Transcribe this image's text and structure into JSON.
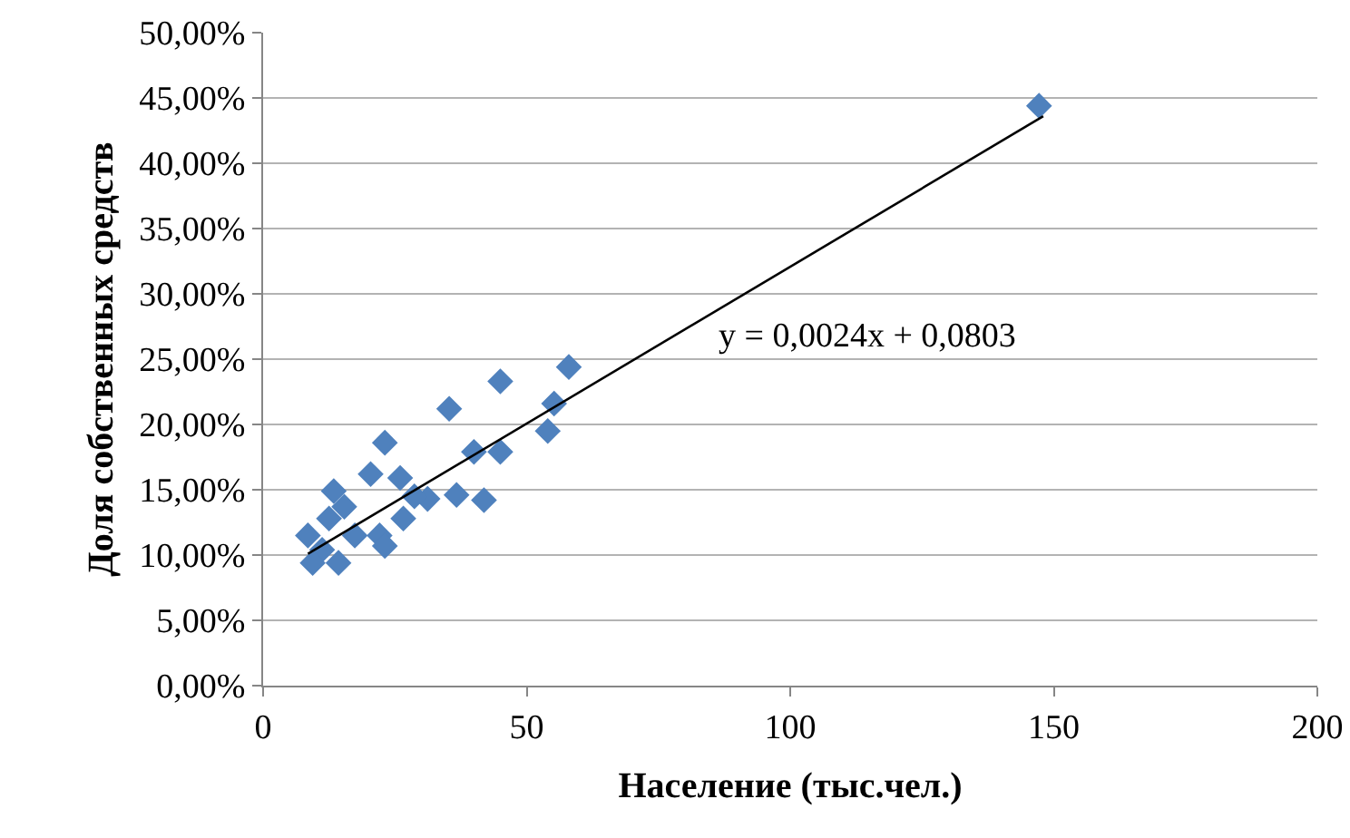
{
  "chart_data": {
    "type": "scatter",
    "xlabel": "Население (тыс.чел.)",
    "ylabel": "Доля собственных средств",
    "marker": "diamond",
    "grid": "y",
    "legend": false,
    "xlim": [
      0,
      200
    ],
    "xticks": [
      0,
      50,
      100,
      150,
      200
    ],
    "ylim": [
      0,
      50
    ],
    "yticks": [
      {
        "value": 0,
        "label": "0,00%"
      },
      {
        "value": 5,
        "label": "5,00%"
      },
      {
        "value": 10,
        "label": "10,00%"
      },
      {
        "value": 15,
        "label": "15,00%"
      },
      {
        "value": 20,
        "label": "20,00%"
      },
      {
        "value": 25,
        "label": "25,00%"
      },
      {
        "value": 30,
        "label": "30,00%"
      },
      {
        "value": 35,
        "label": "35,00%"
      },
      {
        "value": 40,
        "label": "40,00%"
      },
      {
        "value": 45,
        "label": "45,00%"
      },
      {
        "value": 50,
        "label": "50,00%"
      }
    ],
    "series": [
      {
        "color": "#4f81bd",
        "x": [
          58.0,
          45.0,
          35.3,
          55.2,
          54.0,
          23.1,
          40.0,
          45.0,
          20.4,
          26.0,
          13.4,
          36.7,
          31.2,
          28.7,
          41.9,
          15.4,
          12.5,
          26.6,
          17.4,
          8.5,
          22.1,
          23.1,
          11.2,
          9.4,
          14.3,
          147.2
        ],
        "values": [
          24.4,
          23.3,
          21.2,
          21.6,
          19.5,
          18.6,
          17.9,
          17.9,
          16.2,
          15.9,
          14.9,
          14.6,
          14.3,
          14.5,
          14.2,
          13.7,
          12.8,
          12.8,
          11.5,
          11.5,
          11.5,
          10.7,
          10.4,
          9.4,
          9.4,
          44.4
        ]
      },
      {
        "type": "line",
        "color": "#000000",
        "marker": "none",
        "x": [
          8.5,
          148
        ],
        "values": [
          10.1,
          43.6
        ]
      }
    ],
    "annotations": [
      "y = 0,0024x + 0,0803"
    ]
  }
}
